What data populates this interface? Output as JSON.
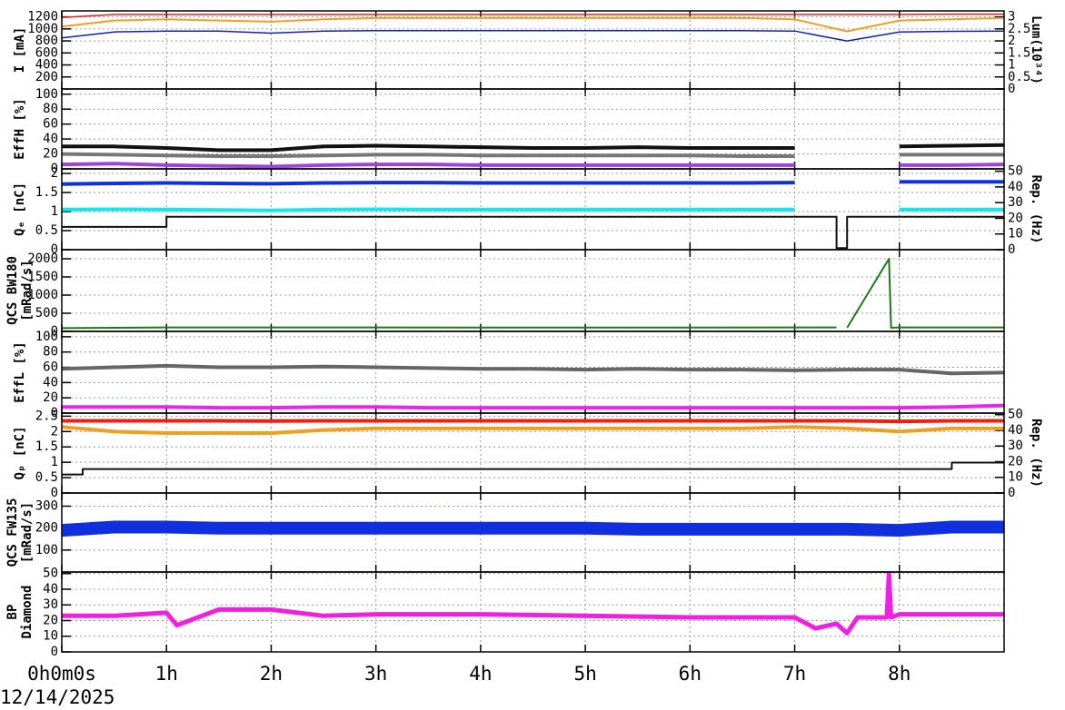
{
  "date": "12/14/2025",
  "x": [
    0,
    0.5,
    1,
    1.5,
    2,
    2.5,
    3,
    3.5,
    4,
    4.5,
    5,
    5.5,
    6,
    6.5,
    7,
    7.5,
    8,
    8.5,
    9
  ],
  "xlim": [
    0,
    9
  ],
  "xticks": [
    {
      "value": 0,
      "label": "0h0m0s"
    },
    {
      "value": 1,
      "label": "1h"
    },
    {
      "value": 2,
      "label": "2h"
    },
    {
      "value": 3,
      "label": "3h"
    },
    {
      "value": 4,
      "label": "4h"
    },
    {
      "value": 5,
      "label": "5h"
    },
    {
      "value": 6,
      "label": "6h"
    },
    {
      "value": 7,
      "label": "7h"
    },
    {
      "value": 8,
      "label": "8h"
    }
  ],
  "grid": true,
  "chart_data": [
    {
      "type": "line",
      "ylabel": [
        "I [mA]"
      ],
      "y2label": "Lum(10³⁴)",
      "ylim": [
        0,
        1300
      ],
      "yticks": [
        200,
        400,
        600,
        800,
        1000,
        1200
      ],
      "y2lim": [
        0,
        3.25
      ],
      "y2ticks": [
        0,
        0.5,
        1,
        1.5,
        2,
        2.5,
        3
      ],
      "series": [
        {
          "color": "#e0201b",
          "values": [
            1190,
            1240,
            1240,
            1240,
            1240,
            1240,
            1240,
            1240,
            1240,
            1240,
            1240,
            1240,
            1240,
            1240,
            1240,
            1240,
            1240,
            1245,
            1245
          ]
        },
        {
          "color": "#f0a020",
          "axis": "y2",
          "values": [
            2.6,
            2.85,
            2.9,
            2.85,
            2.8,
            2.9,
            2.95,
            2.95,
            2.95,
            2.95,
            2.95,
            2.95,
            2.95,
            2.95,
            2.9,
            2.4,
            2.85,
            2.9,
            2.95
          ]
        },
        {
          "color": "#1020c0",
          "values": [
            850,
            950,
            965,
            965,
            930,
            965,
            970,
            970,
            970,
            970,
            970,
            970,
            970,
            970,
            965,
            800,
            950,
            960,
            965
          ]
        }
      ]
    },
    {
      "type": "line",
      "ylabel": [
        "EffH [%]"
      ],
      "ylim": [
        0,
        107
      ],
      "yticks": [
        0,
        20,
        40,
        60,
        80,
        100
      ],
      "series": [
        {
          "color": "#111111",
          "values": [
            30,
            30,
            28,
            25,
            25,
            30,
            31,
            30,
            29,
            28,
            28,
            29,
            28,
            28,
            28,
            null,
            30,
            31,
            32
          ]
        },
        {
          "color": "#777777",
          "values": [
            20,
            19,
            18,
            17,
            17,
            18,
            19,
            19,
            18,
            18,
            18,
            18,
            18,
            17,
            17,
            null,
            19,
            19,
            19
          ]
        },
        {
          "color": "#a040e0",
          "values": [
            6,
            7,
            5,
            4,
            3,
            5,
            6,
            6,
            5,
            5,
            5,
            5,
            5,
            5,
            5,
            null,
            5,
            5,
            6
          ]
        }
      ]
    },
    {
      "type": "line",
      "ylabel": [
        "Qₑ [nC]"
      ],
      "y2label": "Rep. (Hz)",
      "ylim": [
        0,
        2.12
      ],
      "yticks": [
        0,
        0.5,
        1,
        1.5,
        2
      ],
      "y2lim": [
        0,
        51.5
      ],
      "y2ticks": [
        0,
        10,
        20,
        30,
        40,
        50
      ],
      "series": [
        {
          "color": "#1030e0",
          "values": [
            1.72,
            1.74,
            1.75,
            1.74,
            1.73,
            1.75,
            1.76,
            1.76,
            1.75,
            1.75,
            1.75,
            1.75,
            1.75,
            1.75,
            1.76,
            null,
            1.78,
            1.78,
            1.78
          ]
        },
        {
          "color": "#10e8f0",
          "values": [
            1.05,
            1.06,
            1.05,
            1.04,
            1.03,
            1.05,
            1.06,
            1.05,
            1.05,
            1.05,
            1.05,
            1.05,
            1.05,
            1.05,
            1.05,
            null,
            1.05,
            1.05,
            1.05
          ]
        },
        {
          "color": "#111111",
          "axis": "y2",
          "x": [
            0,
            1,
            1,
            7.4,
            7.4,
            7.5,
            7.5,
            9
          ],
          "values": [
            14.5,
            14.5,
            21,
            21,
            1,
            1,
            21,
            21
          ]
        }
      ]
    },
    {
      "type": "line",
      "ylabel": [
        "QCS BW180",
        "[mRad/s]"
      ],
      "ylim": [
        0,
        2250
      ],
      "yticks": [
        0,
        500,
        1000,
        1500,
        2000
      ],
      "series": [
        {
          "color": "#1a7a1a",
          "x": [
            0,
            1,
            2,
            3,
            4,
            5,
            6,
            7,
            7.4,
            7.45,
            7.5,
            7.9,
            7.92,
            8,
            9
          ],
          "values": [
            90,
            110,
            110,
            110,
            105,
            105,
            105,
            110,
            110,
            null,
            100,
            2000,
            100,
            110,
            110
          ]
        }
      ]
    },
    {
      "type": "line",
      "ylabel": [
        "EffL [%]"
      ],
      "ylim": [
        0,
        107
      ],
      "yticks": [
        0,
        20,
        40,
        60,
        80,
        100
      ],
      "series": [
        {
          "color": "#666666",
          "values": [
            58,
            60,
            62,
            60,
            60,
            61,
            60,
            59,
            58,
            58,
            57,
            58,
            57,
            57,
            56,
            57,
            57,
            52,
            53
          ]
        },
        {
          "color": "#f020f0",
          "values": [
            8,
            8,
            8,
            7,
            7,
            8,
            8,
            7,
            7,
            7,
            7,
            7,
            7,
            7,
            7,
            7,
            7,
            8,
            10
          ]
        }
      ]
    },
    {
      "type": "line",
      "ylabel": [
        "Qₚ [nC]"
      ],
      "y2label": "Rep. (Hz)",
      "ylim": [
        0,
        2.6
      ],
      "yticks": [
        0,
        0.5,
        1,
        1.5,
        2,
        2.5
      ],
      "y2lim": [
        0,
        51
      ],
      "y2ticks": [
        0,
        10,
        20,
        30,
        40,
        50
      ],
      "series": [
        {
          "color": "#f02010",
          "values": [
            2.35,
            2.35,
            2.35,
            2.35,
            2.34,
            2.35,
            2.35,
            2.35,
            2.35,
            2.35,
            2.35,
            2.35,
            2.35,
            2.35,
            2.35,
            2.35,
            2.33,
            2.35,
            2.35
          ]
        },
        {
          "color": "#f0a020",
          "values": [
            2.15,
            2.0,
            1.95,
            1.95,
            1.95,
            2.05,
            2.1,
            2.1,
            2.1,
            2.1,
            2.1,
            2.1,
            2.1,
            2.1,
            2.15,
            2.1,
            2.0,
            2.1,
            2.1
          ]
        },
        {
          "color": "#111111",
          "axis": "y2",
          "x": [
            0,
            0.2,
            0.2,
            8.5,
            8.5,
            9
          ],
          "values": [
            11.8,
            11.8,
            15.3,
            15.3,
            19.4,
            19.4
          ]
        }
      ]
    },
    {
      "type": "line",
      "ylabel": [
        "QCS FW135",
        "[mRad/s]"
      ],
      "ylim": [
        0,
        360
      ],
      "yticks": [
        100,
        200,
        300
      ],
      "series": [
        {
          "color": "#1030e0",
          "values": [
            190,
            205,
            205,
            200,
            200,
            200,
            200,
            200,
            200,
            200,
            200,
            195,
            195,
            195,
            195,
            195,
            190,
            205,
            205
          ]
        }
      ]
    },
    {
      "type": "line",
      "ylabel": [
        "BP",
        "Diamond"
      ],
      "ylim": [
        0,
        51
      ],
      "yticks": [
        0,
        10,
        20,
        30,
        40,
        50
      ],
      "series": [
        {
          "color": "#f020e0",
          "x": [
            0,
            0.5,
            1,
            1.1,
            1.3,
            1.5,
            2,
            2.5,
            3,
            4,
            5,
            6,
            7,
            7.2,
            7.4,
            7.5,
            7.6,
            7.88,
            7.9,
            7.92,
            8,
            9
          ],
          "values": [
            23,
            23,
            25,
            17,
            22,
            27,
            27,
            23,
            24,
            24,
            23,
            22,
            22,
            15,
            18,
            12,
            22,
            22,
            50,
            22,
            24,
            24
          ]
        }
      ]
    }
  ]
}
